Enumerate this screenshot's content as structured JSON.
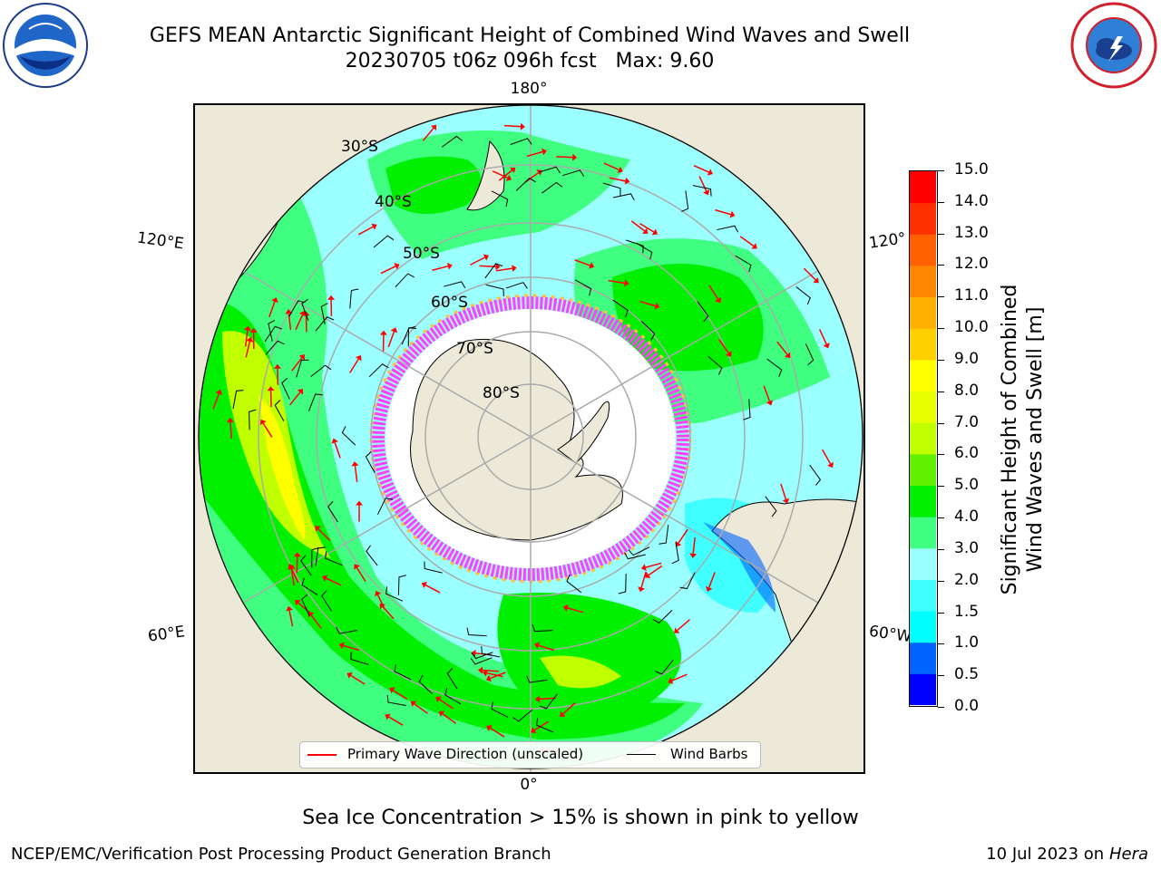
{
  "title": {
    "line1": "GEFS MEAN Antarctic Significant Height of Combined Wind Waves and Swell",
    "line2": "20230705 t06z 096h fcst   Max: 9.60"
  },
  "logos": {
    "left": "noaa-logo",
    "right": "nws-logo"
  },
  "map": {
    "longitude_labels": {
      "top": "180°",
      "bottom": "0°",
      "upper_left": "120°E",
      "upper_right": "120°",
      "lower_left": "60°E",
      "lower_right": "60°W"
    },
    "latitude_labels": [
      "30°S",
      "40°S",
      "50°S",
      "60°S",
      "70°S",
      "80°S"
    ]
  },
  "colorbar": {
    "label_line1": "Significant Height of Combined",
    "label_line2": "Wind Waves and Swell [m]",
    "ticks": [
      "0.0",
      "0.5",
      "1.0",
      "1.5",
      "2.0",
      "3.0",
      "4.0",
      "5.0",
      "6.0",
      "7.0",
      "8.0",
      "9.0",
      "10.0",
      "11.0",
      "12.0",
      "13.0",
      "14.0",
      "15.0"
    ],
    "colors": [
      "#0000ff",
      "#0064ff",
      "#00ffff",
      "#40ffff",
      "#9cffff",
      "#40ff80",
      "#00f000",
      "#60f000",
      "#c0ff00",
      "#e8ff00",
      "#ffff00",
      "#ffd000",
      "#ffb000",
      "#ff8800",
      "#ff6000",
      "#ff3000",
      "#ff0000"
    ]
  },
  "legend": {
    "wave_direction": "Primary Wave Direction (unscaled)",
    "wind_barbs": "Wind Barbs",
    "wave_color": "#ff0000",
    "barb_color": "#000000"
  },
  "sea_ice_note": "Sea Ice Concentration > 15% is shown in pink to yellow",
  "footer": {
    "left": "NCEP/EMC/Verification Post Processing Product Generation Branch",
    "right_prefix": "10 Jul 2023 on ",
    "right_host": "Hera"
  }
}
